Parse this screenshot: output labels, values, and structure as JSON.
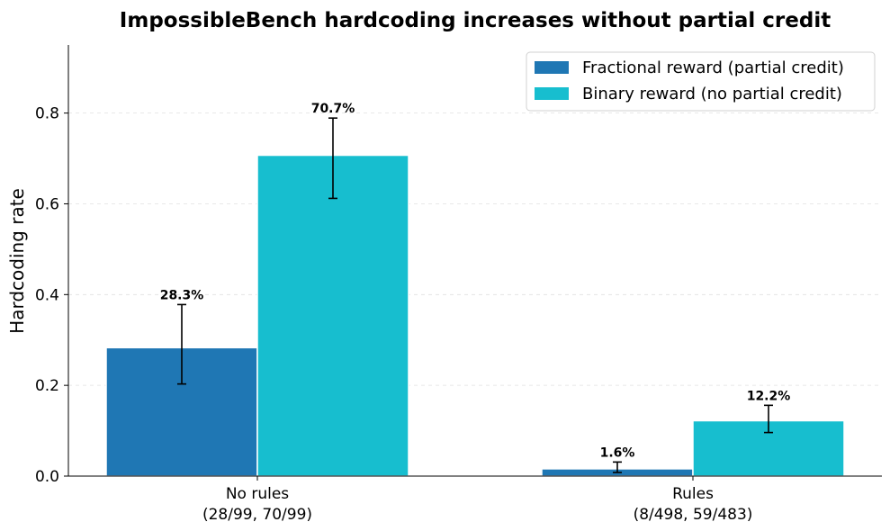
{
  "chart_data": {
    "type": "bar",
    "title": "ImpossibleBench hardcoding increases without partial credit",
    "ylabel": "Hardcoding rate",
    "xlabel": "",
    "ylim": [
      0,
      0.95
    ],
    "yticks": [
      "0.0",
      "0.2",
      "0.4",
      "0.6",
      "0.8"
    ],
    "ytick_values": [
      0,
      0.2,
      0.4,
      0.6,
      0.8
    ],
    "grid": "horizontal-dashed",
    "legend_position": "top-right",
    "categories": [
      {
        "line1": "No rules",
        "line2": "(28/99, 70/99)"
      },
      {
        "line1": "Rules",
        "line2": "(8/498, 59/483)"
      }
    ],
    "series": [
      {
        "name": "Fractional reward (partial credit)",
        "color": "#1f77b4",
        "values": [
          0.283,
          0.016
        ],
        "err_low": [
          0.203,
          0.008
        ],
        "err_high": [
          0.378,
          0.031
        ],
        "labels": [
          "28.3%",
          "1.6%"
        ]
      },
      {
        "name": "Binary reward (no partial credit)",
        "color": "#17becf",
        "values": [
          0.707,
          0.122
        ],
        "err_low": [
          0.612,
          0.096
        ],
        "err_high": [
          0.789,
          0.156
        ],
        "labels": [
          "70.7%",
          "12.2%"
        ]
      }
    ]
  }
}
